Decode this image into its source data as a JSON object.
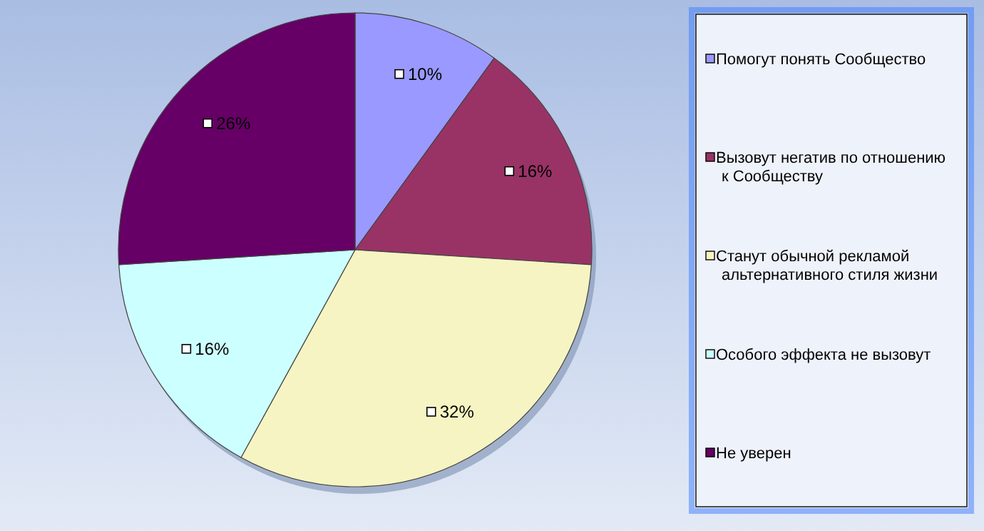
{
  "chart_data": {
    "type": "pie",
    "categories": [
      "Помогут понять Сообщество",
      "Вызовут негатив по отношению к Сообществу",
      "Станут обычной рекламой альтернативного стиля жизни",
      "Особого эффекта не вызовут",
      "Не уверен"
    ],
    "values": [
      10,
      16,
      32,
      16,
      26
    ],
    "colors": [
      "#9999ff",
      "#993366",
      "#f6f4c2",
      "#ccffff",
      "#660066"
    ],
    "value_labels": [
      "10%",
      "16%",
      "32%",
      "16%",
      "26%"
    ],
    "legend": "right"
  }
}
